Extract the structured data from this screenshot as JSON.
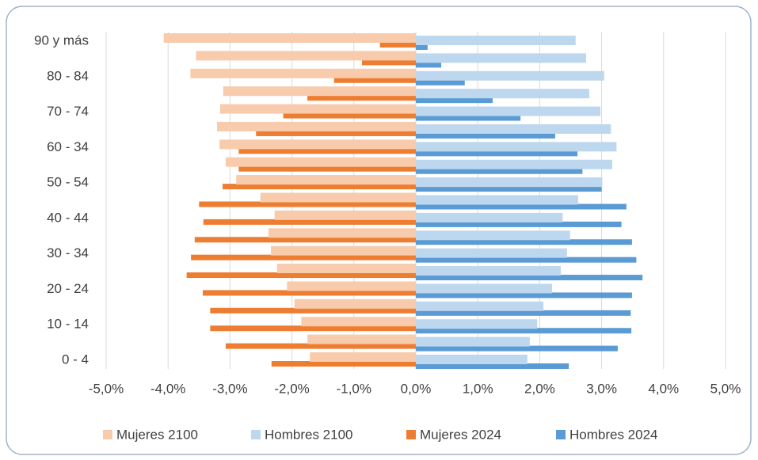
{
  "chart_data": {
    "type": "bar",
    "orientation": "horizontal",
    "categories": [
      "0 - 4",
      null,
      "10 - 14",
      null,
      "20 - 24",
      null,
      "30 - 34",
      null,
      "40 - 44",
      null,
      "50 - 54",
      null,
      "60 - 34",
      null,
      "70 - 74",
      null,
      "80 - 84",
      null,
      "90 y más"
    ],
    "series": [
      {
        "name": "Mujeres 2100",
        "color": "#f8cbad",
        "values": [
          -1.71,
          -1.75,
          -1.85,
          -1.96,
          -2.08,
          -2.24,
          -2.34,
          -2.38,
          -2.28,
          -2.51,
          -2.9,
          -3.07,
          -3.17,
          -3.21,
          -3.16,
          -3.11,
          -3.64,
          -3.55,
          -4.07
        ]
      },
      {
        "name": "Hombres 2100",
        "color": "#bdd7ee",
        "values": [
          1.8,
          1.84,
          1.96,
          2.06,
          2.2,
          2.34,
          2.44,
          2.49,
          2.37,
          2.62,
          3.01,
          3.17,
          3.24,
          3.15,
          2.98,
          2.8,
          3.04,
          2.75,
          2.58
        ]
      },
      {
        "name": "Mujeres 2024",
        "color": "#ed7d31",
        "values": [
          -2.33,
          -3.07,
          -3.32,
          -3.32,
          -3.44,
          -3.7,
          -3.63,
          -3.57,
          -3.43,
          -3.5,
          -3.12,
          -2.86,
          -2.86,
          -2.58,
          -2.14,
          -1.75,
          -1.32,
          -0.87,
          -0.58
        ]
      },
      {
        "name": "Hombres 2024",
        "color": "#5b9bd5",
        "values": [
          2.47,
          3.26,
          3.48,
          3.47,
          3.49,
          3.66,
          3.56,
          3.49,
          3.32,
          3.4,
          3.0,
          2.69,
          2.61,
          2.25,
          1.69,
          1.24,
          0.79,
          0.41,
          0.19
        ]
      }
    ],
    "xlim": [
      -5,
      5
    ],
    "xticks": [
      {
        "value": -5,
        "label": "-5,0%"
      },
      {
        "value": -4,
        "label": "-4,0%"
      },
      {
        "value": -3,
        "label": "-3,0%"
      },
      {
        "value": -2,
        "label": "-2,0%"
      },
      {
        "value": -1,
        "label": "-1,0%"
      },
      {
        "value": 0,
        "label": "0,0%"
      },
      {
        "value": 1,
        "label": "1,0%"
      },
      {
        "value": 2,
        "label": "2,0%"
      },
      {
        "value": 3,
        "label": "3,0%"
      },
      {
        "value": 4,
        "label": "4,0%"
      },
      {
        "value": 5,
        "label": "5,0%"
      }
    ],
    "grid": true,
    "legend": "bottom"
  }
}
